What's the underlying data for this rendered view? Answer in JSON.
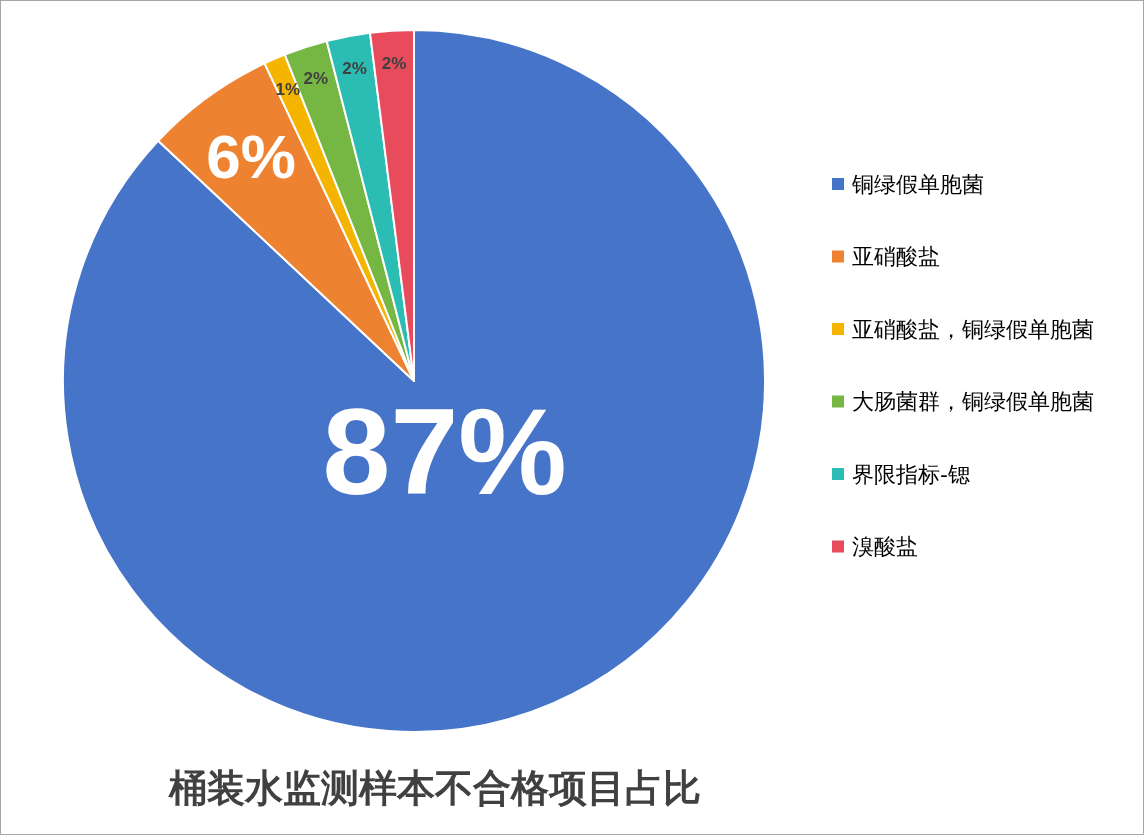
{
  "chart_data": {
    "type": "pie",
    "title": "桶装水监测样本不合格项目占比",
    "categories": [
      "铜绿假单胞菌",
      "亚硝酸盐",
      "亚硝酸盐，铜绿假单胞菌",
      "大肠菌群，铜绿假单胞菌",
      "界限指标-锶",
      "溴酸盐"
    ],
    "values": [
      87,
      6,
      1,
      2,
      2,
      2
    ],
    "colors": [
      "#4674c8",
      "#ed8331",
      "#f4b400",
      "#76b643",
      "#2bbcb3",
      "#e84b5c"
    ],
    "value_labels": [
      "87%",
      "6%",
      "1%",
      "2%",
      "2%",
      "2%"
    ],
    "legend": "right"
  }
}
